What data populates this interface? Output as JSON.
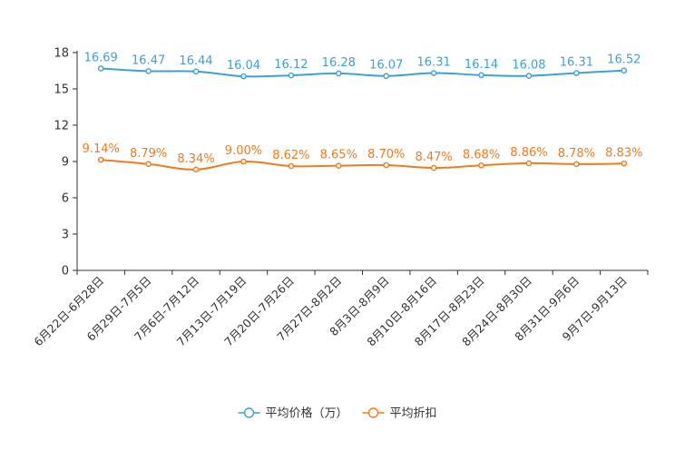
{
  "chart_data": {
    "type": "line",
    "categories": [
      "6月22日-6月28日",
      "6月29日-7月5日",
      "7月6日-7月12日",
      "7月13日-7月19日",
      "7月20日-7月26日",
      "7月27日-8月2日",
      "8月3日-8月9日",
      "8月10日-8月16日",
      "8月17日-8月23日",
      "8月24日-8月30日",
      "8月31日-9月6日",
      "9月7日-9月13日"
    ],
    "series": [
      {
        "name": "平均价格（万）",
        "color": "#3ba1d6",
        "values": [
          16.69,
          16.47,
          16.44,
          16.04,
          16.12,
          16.28,
          16.07,
          16.31,
          16.14,
          16.08,
          16.31,
          16.52
        ],
        "labels": [
          "16.69",
          "16.47",
          "16.44",
          "16.04",
          "16.12",
          "16.28",
          "16.07",
          "16.31",
          "16.14",
          "16.08",
          "16.31",
          "16.52"
        ]
      },
      {
        "name": "平均折扣",
        "color": "#f07b1d",
        "values": [
          9.14,
          8.79,
          8.34,
          9.0,
          8.62,
          8.65,
          8.7,
          8.47,
          8.68,
          8.86,
          8.78,
          8.83
        ],
        "labels": [
          "9.14%",
          "8.79%",
          "8.34%",
          "9.00%",
          "8.62%",
          "8.65%",
          "8.70%",
          "8.47%",
          "8.68%",
          "8.86%",
          "8.78%",
          "8.83%"
        ]
      }
    ],
    "yticks": [
      "0",
      "3",
      "6",
      "9",
      "12",
      "15",
      "18"
    ],
    "ylim": [
      0,
      18
    ],
    "title": "",
    "xlabel": "",
    "ylabel": "",
    "legend_position": "bottom-center"
  }
}
